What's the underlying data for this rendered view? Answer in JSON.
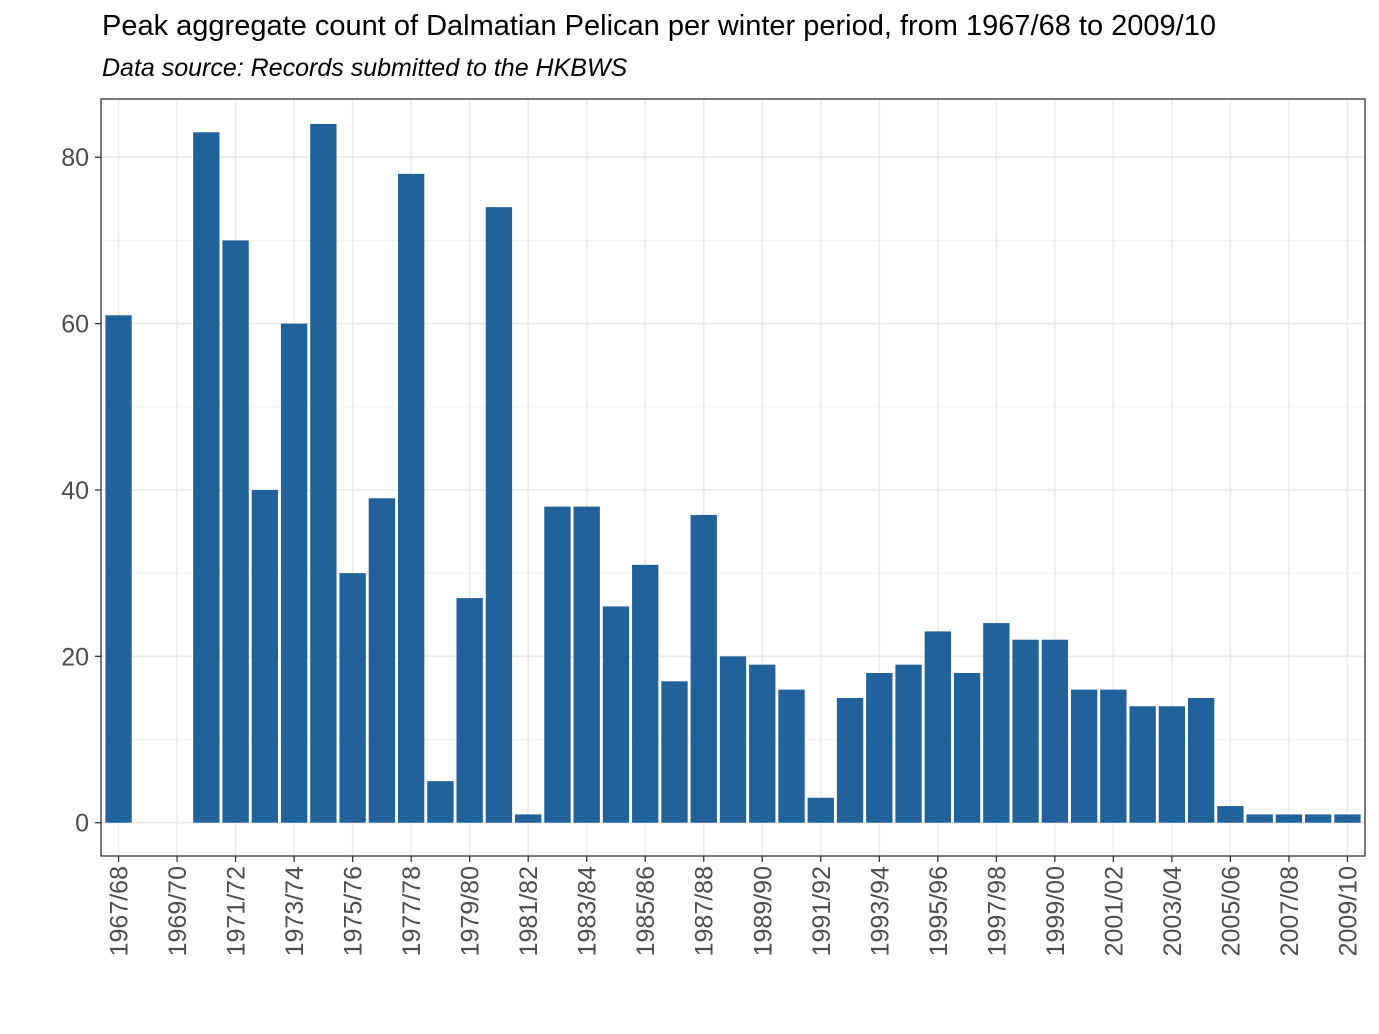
{
  "chart_data": {
    "type": "bar",
    "title": "Peak aggregate count of Dalmatian Pelican per winter period, from 1967/68 to 2009/10",
    "subtitle": "Data source: Records submitted to the HKBWS",
    "xlabel": "",
    "ylabel": "",
    "ylim": [
      -4,
      87
    ],
    "yticks": [
      0,
      20,
      40,
      60,
      80
    ],
    "x_tick_labels": [
      "1967/68",
      "1969/70",
      "1971/72",
      "1973/74",
      "1975/76",
      "1977/78",
      "1979/80",
      "1981/82",
      "1983/84",
      "1985/86",
      "1987/88",
      "1989/90",
      "1991/92",
      "1993/94",
      "1995/96",
      "1997/98",
      "1999/00",
      "2001/02",
      "2003/04",
      "2005/06",
      "2007/08",
      "2009/10"
    ],
    "categories": [
      "1967/68",
      "1968/69",
      "1969/70",
      "1970/71",
      "1971/72",
      "1972/73",
      "1973/74",
      "1974/75",
      "1975/76",
      "1976/77",
      "1977/78",
      "1978/79",
      "1979/80",
      "1980/81",
      "1981/82",
      "1982/83",
      "1983/84",
      "1984/85",
      "1985/86",
      "1986/87",
      "1987/88",
      "1988/89",
      "1989/90",
      "1990/91",
      "1991/92",
      "1992/93",
      "1993/94",
      "1994/95",
      "1995/96",
      "1996/97",
      "1997/98",
      "1998/99",
      "1999/00",
      "2000/01",
      "2001/02",
      "2002/03",
      "2003/04",
      "2004/05",
      "2005/06",
      "2006/07",
      "2007/08",
      "2008/09",
      "2009/10"
    ],
    "values": [
      61,
      0,
      0,
      83,
      70,
      40,
      60,
      84,
      30,
      39,
      78,
      5,
      27,
      74,
      1,
      38,
      38,
      26,
      31,
      17,
      37,
      20,
      19,
      16,
      3,
      15,
      18,
      19,
      23,
      18,
      24,
      22,
      22,
      16,
      16,
      14,
      14,
      15,
      2,
      1,
      1,
      1,
      1
    ],
    "grid": true,
    "bar_color": "#21629a"
  }
}
